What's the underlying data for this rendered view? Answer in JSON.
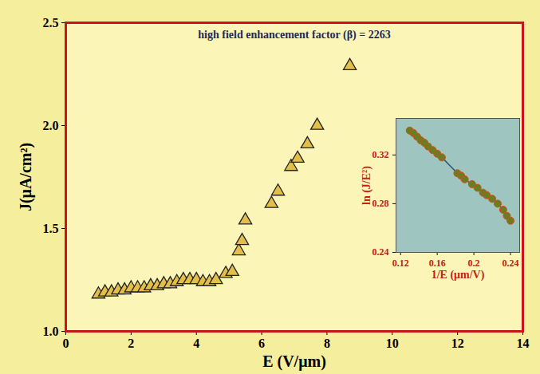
{
  "chart_data": [
    {
      "type": "scatter",
      "annotation": "high field enhancement factor (β) = 2263",
      "x_label": "E (V/μm)",
      "y_label": "J(μA/cm²)",
      "x": [
        1.0,
        1.2,
        1.4,
        1.6,
        1.8,
        2.0,
        2.2,
        2.4,
        2.6,
        2.8,
        3.0,
        3.2,
        3.4,
        3.6,
        3.8,
        4.0,
        4.2,
        4.4,
        4.6,
        4.9,
        5.1,
        5.3,
        5.4,
        5.5,
        6.3,
        6.5,
        6.9,
        7.1,
        7.4,
        7.7,
        8.7
      ],
      "values": [
        1.18,
        1.19,
        1.19,
        1.2,
        1.2,
        1.21,
        1.21,
        1.21,
        1.22,
        1.22,
        1.23,
        1.23,
        1.24,
        1.25,
        1.25,
        1.25,
        1.24,
        1.24,
        1.25,
        1.28,
        1.29,
        1.39,
        1.44,
        1.54,
        1.62,
        1.68,
        1.8,
        1.84,
        1.91,
        2.0,
        2.29
      ],
      "color": "#e3bf4a",
      "marker": "triangle",
      "xlim": [
        0,
        14
      ],
      "xticks": [
        0,
        2,
        4,
        6,
        8,
        10,
        12,
        14
      ],
      "ylim": [
        1.0,
        2.5
      ],
      "yticks": [
        {
          "value": 1.0,
          "label": "1.0"
        },
        {
          "value": 1.5,
          "label": "1.5"
        },
        {
          "value": 2.0,
          "label": "2.0"
        },
        {
          "value": 2.5,
          "label": "2.5"
        }
      ],
      "grid": false
    },
    {
      "type": "line",
      "x_label": "1/E (μm/V)",
      "y_label": "ln (J/E²)",
      "x": [
        0.13,
        0.134,
        0.138,
        0.142,
        0.146,
        0.15,
        0.155,
        0.16,
        0.165,
        0.182,
        0.186,
        0.19,
        0.198,
        0.204,
        0.21,
        0.214,
        0.22,
        0.226,
        0.232,
        0.236,
        0.24
      ],
      "values": [
        0.34,
        0.338,
        0.335,
        0.332,
        0.33,
        0.327,
        0.324,
        0.321,
        0.318,
        0.305,
        0.303,
        0.3,
        0.296,
        0.293,
        0.289,
        0.287,
        0.284,
        0.28,
        0.275,
        0.27,
        0.266
      ],
      "color": "#6b7d22",
      "marker": "circle",
      "line_style": "solid",
      "xlim": [
        0.115,
        0.25
      ],
      "xticks": [
        0.12,
        0.16,
        0.2,
        0.24
      ],
      "ylim": [
        0.24,
        0.35
      ],
      "yticks": [
        0.24,
        0.28,
        0.32
      ],
      "grid": false
    }
  ]
}
